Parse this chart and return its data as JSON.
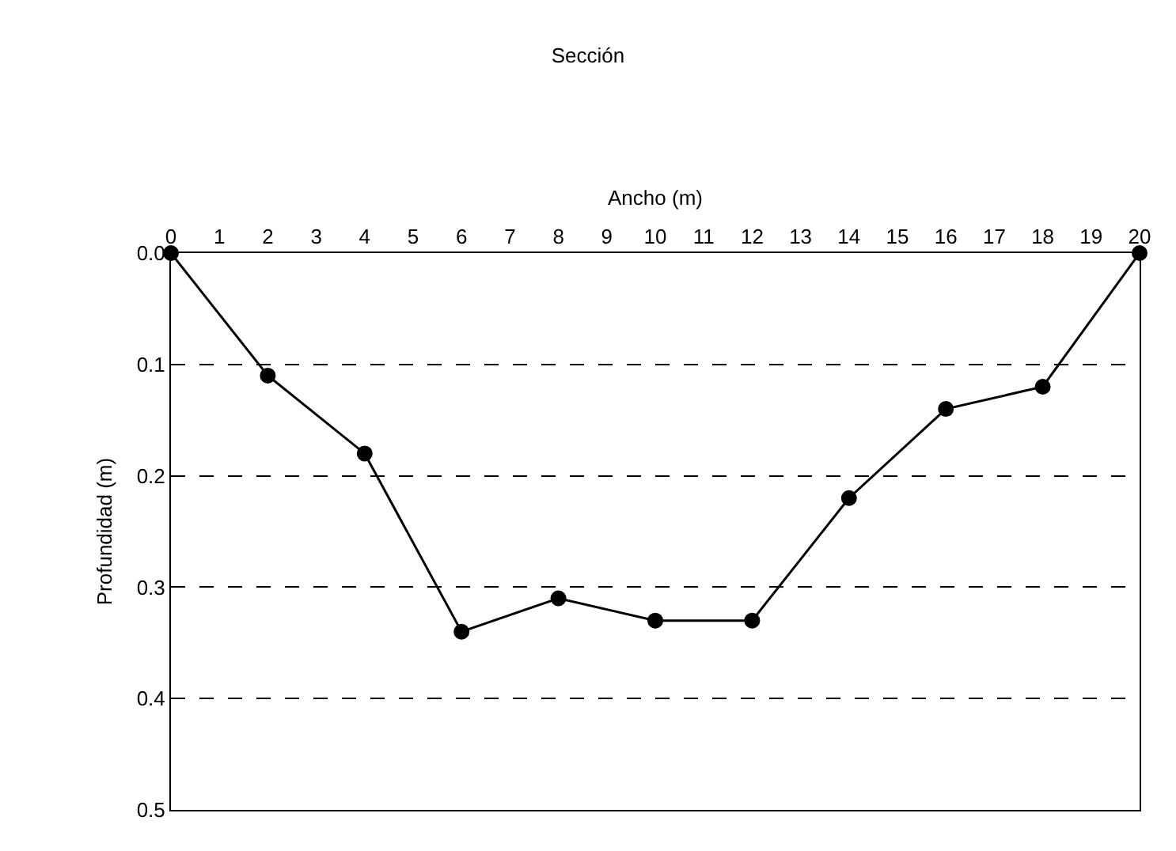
{
  "chart_data": {
    "type": "line",
    "title": "Sección",
    "xlabel": "Ancho (m)",
    "ylabel": "Profundidad (m)",
    "x": [
      0,
      2,
      4,
      6,
      8,
      10,
      12,
      14,
      16,
      18,
      20
    ],
    "series": [
      {
        "color": "#000000",
        "values": [
          0,
          0.11,
          0.18,
          0.34,
          0.31,
          0.33,
          0.33,
          0.22,
          0.14,
          0.12,
          0
        ]
      }
    ],
    "xlim": [
      0,
      20
    ],
    "xticks": [
      0,
      1,
      2,
      3,
      4,
      5,
      6,
      7,
      8,
      9,
      10,
      11,
      12,
      13,
      14,
      15,
      16,
      17,
      18,
      19,
      20
    ],
    "ylim": [
      0.5,
      0
    ],
    "yticks": [
      {
        "value": 0,
        "label": "0.0"
      },
      {
        "value": 0.1,
        "label": "0.1"
      },
      {
        "value": 0.2,
        "label": "0.2"
      },
      {
        "value": 0.3,
        "label": "0.3"
      },
      {
        "value": 0.4,
        "label": "0.4"
      },
      {
        "value": 0.5,
        "label": "0.5"
      }
    ],
    "grid": "y",
    "marker": "circle",
    "line_style": "solid"
  }
}
